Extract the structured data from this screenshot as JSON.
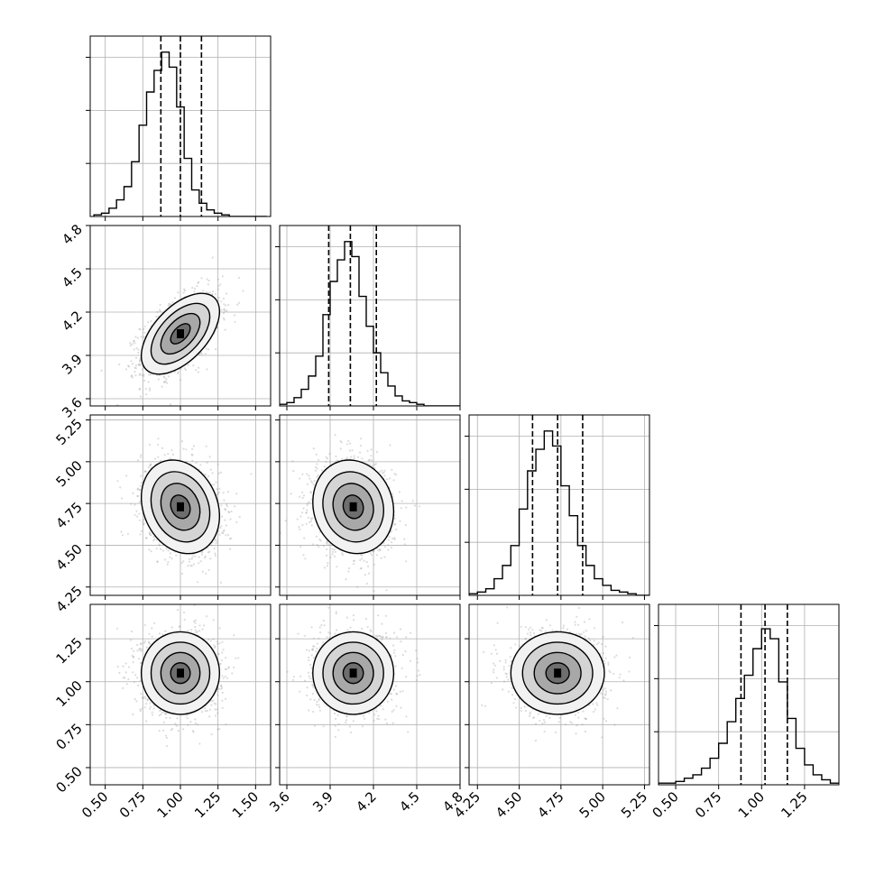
{
  "chart_data": {
    "type": "corner",
    "grid": true,
    "parameter_count": 4,
    "axes": [
      {
        "range": [
          0.4,
          1.6
        ],
        "ticks": [
          0.5,
          0.75,
          1.0,
          1.25,
          1.5
        ],
        "tick_labels": [
          "0.50",
          "0.75",
          "1.00",
          "1.25",
          "1.50"
        ]
      },
      {
        "range": [
          3.55,
          4.8
        ],
        "ticks": [
          3.6,
          3.9,
          4.2,
          4.5,
          4.8
        ],
        "tick_labels": [
          "3.6",
          "3.9",
          "4.2",
          "4.5",
          "4.8"
        ]
      },
      {
        "range": [
          4.2,
          5.28
        ],
        "ticks": [
          4.25,
          4.5,
          4.75,
          5.0,
          5.25
        ],
        "tick_labels": [
          "4.25",
          "4.50",
          "4.75",
          "5.00",
          "5.25"
        ]
      },
      {
        "range": [
          0.4,
          1.45
        ],
        "ticks": [
          0.5,
          0.75,
          1.0,
          1.25
        ],
        "tick_labels": [
          "0.50",
          "0.75",
          "1.00",
          "1.25"
        ]
      }
    ],
    "marginals": [
      {
        "param": 0,
        "quantiles": [
          0.87,
          1.0,
          1.14
        ],
        "bin_centers": [
          0.45,
          0.5,
          0.55,
          0.6,
          0.65,
          0.7,
          0.75,
          0.8,
          0.85,
          0.9,
          0.95,
          1.0,
          1.05,
          1.1,
          1.15,
          1.2,
          1.25,
          1.3,
          1.35,
          1.4,
          1.45,
          1.5,
          1.55
        ],
        "counts": [
          0.01,
          0.02,
          0.05,
          0.1,
          0.18,
          0.33,
          0.55,
          0.75,
          0.88,
          0.99,
          0.9,
          0.66,
          0.35,
          0.16,
          0.08,
          0.04,
          0.02,
          0.01,
          0,
          0,
          0,
          0,
          0
        ]
      },
      {
        "param": 1,
        "quantiles": [
          3.89,
          4.04,
          4.22
        ],
        "bin_centers": [
          3.575,
          3.625,
          3.675,
          3.725,
          3.775,
          3.825,
          3.875,
          3.925,
          3.975,
          4.025,
          4.075,
          4.125,
          4.175,
          4.225,
          4.275,
          4.325,
          4.375,
          4.425,
          4.475,
          4.525,
          4.575,
          4.625,
          4.675,
          4.725,
          4.775
        ],
        "counts": [
          0.01,
          0.02,
          0.05,
          0.1,
          0.18,
          0.3,
          0.55,
          0.75,
          0.88,
          0.99,
          0.9,
          0.66,
          0.48,
          0.32,
          0.2,
          0.12,
          0.06,
          0.03,
          0.02,
          0.01,
          0,
          0,
          0,
          0,
          0
        ]
      },
      {
        "param": 2,
        "quantiles": [
          4.58,
          4.73,
          4.88
        ],
        "bin_centers": [
          4.225,
          4.275,
          4.325,
          4.375,
          4.425,
          4.475,
          4.525,
          4.575,
          4.625,
          4.675,
          4.725,
          4.775,
          4.825,
          4.875,
          4.925,
          4.975,
          5.025,
          5.075,
          5.125,
          5.175,
          5.225,
          5.275
        ],
        "counts": [
          0.01,
          0.02,
          0.04,
          0.1,
          0.18,
          0.3,
          0.52,
          0.75,
          0.88,
          0.99,
          0.9,
          0.66,
          0.48,
          0.3,
          0.18,
          0.1,
          0.06,
          0.03,
          0.02,
          0.01,
          0,
          0
        ]
      },
      {
        "param": 3,
        "quantiles": [
          0.88,
          1.02,
          1.15
        ],
        "bin_centers": [
          0.425,
          0.475,
          0.525,
          0.575,
          0.625,
          0.675,
          0.725,
          0.775,
          0.825,
          0.875,
          0.925,
          0.975,
          1.025,
          1.075,
          1.125,
          1.175,
          1.225,
          1.275,
          1.325,
          1.375,
          1.425
        ],
        "counts": [
          0.01,
          0.01,
          0.02,
          0.04,
          0.06,
          0.1,
          0.16,
          0.25,
          0.38,
          0.52,
          0.66,
          0.82,
          0.94,
          0.88,
          0.62,
          0.4,
          0.22,
          0.12,
          0.06,
          0.03,
          0.01
        ]
      }
    ],
    "pairs": [
      {
        "x_param": 0,
        "y_param": 1,
        "mean": [
          1.0,
          4.05
        ],
        "std": [
          0.13,
          0.14
        ],
        "corr": 0.55
      },
      {
        "x_param": 0,
        "y_param": 2,
        "mean": [
          1.0,
          4.73
        ],
        "std": [
          0.13,
          0.14
        ],
        "corr": -0.2
      },
      {
        "x_param": 1,
        "y_param": 2,
        "mean": [
          4.06,
          4.73
        ],
        "std": [
          0.14,
          0.14
        ],
        "corr": -0.1
      },
      {
        "x_param": 0,
        "y_param": 3,
        "mean": [
          1.0,
          1.05
        ],
        "std": [
          0.13,
          0.12
        ],
        "corr": 0.0
      },
      {
        "x_param": 1,
        "y_param": 3,
        "mean": [
          4.06,
          1.05
        ],
        "std": [
          0.14,
          0.12
        ],
        "corr": 0.0
      },
      {
        "x_param": 2,
        "y_param": 3,
        "mean": [
          4.73,
          1.05
        ],
        "std": [
          0.14,
          0.12
        ],
        "corr": 0.0
      }
    ],
    "contour_levels_sigma": [
      0.5,
      1.0,
      1.5,
      2.0
    ]
  }
}
